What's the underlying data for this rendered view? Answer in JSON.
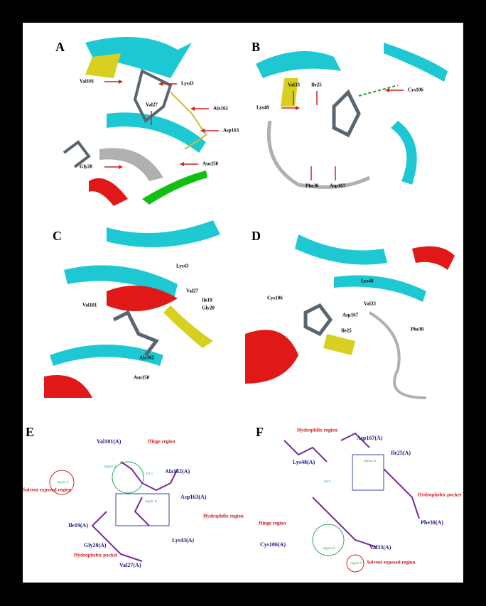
{
  "panels": [
    {
      "letter": "A",
      "labels": [
        "Val101",
        "Lys43",
        "Val27",
        "Ala162",
        "Asp163",
        "Asn150",
        "Gly20"
      ]
    },
    {
      "letter": "B",
      "labels": [
        "Val33",
        "Ile25",
        "Cys106",
        "Lys48",
        "Phe30",
        "Asp167"
      ]
    },
    {
      "letter": "C",
      "labels": [
        "Lys43",
        "Val27",
        "Val101",
        "Ile19",
        "Gly20",
        "Ala162",
        "Asn150"
      ]
    },
    {
      "letter": "D",
      "labels": [
        "Lys48",
        "Cys106",
        "Val33",
        "Asp167",
        "Phe30",
        "Ile25"
      ]
    },
    {
      "letter": "E",
      "labels": [
        "Val101(A)",
        "Hinge region",
        "region B",
        "Ala162(A)",
        "region C",
        "Solvent exposed region",
        "hit 5",
        "Asp163(A)",
        "region A",
        "Hydrophilic region",
        "Ile19(A)",
        "Gly20(A)",
        "Lys43(A)",
        "Hydrophobic pocket",
        "Val27(A)"
      ]
    },
    {
      "letter": "F",
      "labels": [
        "Hydrophilic region",
        "Asp167(A)",
        "Lys48(A)",
        "Ile25(A)",
        "region A",
        "hit 8",
        "Hydrophobic pocket",
        "Hinge region",
        "Phe30(A)",
        "Cys106(A)",
        "region B",
        "Val33(A)",
        "Solvent exposed region",
        "region C"
      ]
    }
  ]
}
